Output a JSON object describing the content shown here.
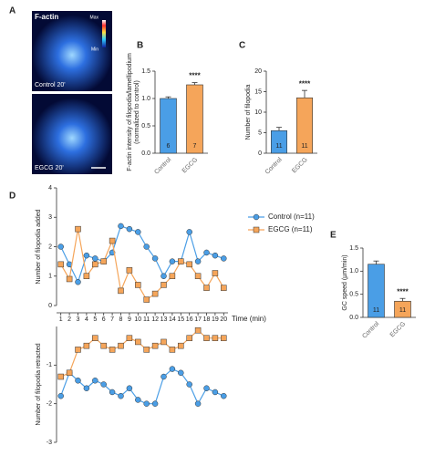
{
  "panel_a": {
    "label": "A",
    "title": "F-actin",
    "scale_max": "Max",
    "scale_min": "Min",
    "images": [
      "Control 20'",
      "EGCG 20'"
    ]
  },
  "chart_data": [
    {
      "type": "bar",
      "panel": "B",
      "ylabel": [
        "F-actin intensity of filopodia/lamellipodium",
        "(normalized to control)"
      ],
      "categories": [
        "Control",
        "EGCG"
      ],
      "values": [
        1.0,
        1.25
      ],
      "errors": [
        0.03,
        0.04
      ],
      "n_labels": [
        "6",
        "7"
      ],
      "colors": [
        "#4a9ee6",
        "#f5a55a"
      ],
      "annotations": [
        "****"
      ],
      "ylim": [
        0,
        1.5
      ],
      "yticks": [
        {
          "value": 0,
          "label": "0.0"
        },
        {
          "value": 0.5,
          "label": "0.5"
        },
        {
          "value": 1,
          "label": "1.0"
        },
        {
          "value": 1.5,
          "label": "1.5"
        }
      ]
    },
    {
      "type": "bar",
      "panel": "C",
      "ylabel": [
        "Number of filopodia"
      ],
      "categories": [
        "Control",
        "EGCG"
      ],
      "values": [
        5.5,
        13.5
      ],
      "errors": [
        0.8,
        1.8
      ],
      "n_labels": [
        "11",
        "11"
      ],
      "colors": [
        "#4a9ee6",
        "#f5a55a"
      ],
      "annotations": [
        "****"
      ],
      "ylim": [
        0,
        20
      ],
      "yticks": [
        0,
        5,
        10,
        15,
        20
      ]
    },
    {
      "type": "line",
      "panel": "D",
      "ylabel": [
        "Number of filopodia added"
      ],
      "xlabel": "Time (min)",
      "x": [
        1,
        2,
        3,
        4,
        5,
        6,
        7,
        8,
        9,
        10,
        11,
        12,
        13,
        14,
        15,
        16,
        17,
        18,
        19,
        20
      ],
      "xlim": [
        0.5,
        20.5
      ],
      "series": [
        {
          "name": "Control (n=11)",
          "color": "#4a9ee6",
          "marker": "circle",
          "values": [
            2.0,
            1.4,
            0.8,
            1.7,
            1.6,
            1.5,
            1.8,
            2.7,
            2.6,
            2.5,
            2.0,
            1.6,
            1.0,
            1.5,
            1.5,
            2.5,
            1.5,
            1.8,
            1.7,
            1.6
          ]
        },
        {
          "name": "EGCG (n=11)",
          "color": "#f5a55a",
          "marker": "square",
          "values": [
            1.4,
            0.9,
            2.6,
            1.0,
            1.4,
            1.5,
            2.2,
            0.5,
            1.2,
            0.7,
            0.2,
            0.4,
            0.7,
            1.0,
            1.5,
            1.4,
            1.0,
            0.6,
            1.1,
            0.6
          ]
        }
      ],
      "ylim": [
        0,
        4
      ],
      "yticks": [
        0,
        1,
        2,
        3,
        4
      ]
    },
    {
      "type": "line",
      "ylabel": [
        "Number of filopodia retracted"
      ],
      "x": [
        1,
        2,
        3,
        4,
        5,
        6,
        7,
        8,
        9,
        10,
        11,
        12,
        13,
        14,
        15,
        16,
        17,
        18,
        19,
        20
      ],
      "xlim": [
        0.5,
        20.5
      ],
      "series": [
        {
          "color": "#4a9ee6",
          "marker": "circle",
          "values": [
            -1.8,
            -1.2,
            -1.4,
            -1.6,
            -1.4,
            -1.5,
            -1.7,
            -1.8,
            -1.6,
            -1.9,
            -2.0,
            -2.0,
            -1.3,
            -1.1,
            -1.2,
            -1.5,
            -2.0,
            -1.6,
            -1.7,
            -1.8
          ]
        },
        {
          "color": "#f5a55a",
          "marker": "square",
          "values": [
            -1.3,
            -1.2,
            -0.6,
            -0.5,
            -0.3,
            -0.5,
            -0.6,
            -0.5,
            -0.3,
            -0.4,
            -0.6,
            -0.5,
            -0.4,
            -0.6,
            -0.5,
            -0.3,
            -0.1,
            -0.3,
            -0.3,
            -0.3
          ]
        }
      ],
      "ylim": [
        -3,
        0
      ],
      "yticks": [
        -3,
        -2,
        -1
      ]
    },
    {
      "type": "bar",
      "panel": "E",
      "ylabel": [
        "GC speed (µm/min)"
      ],
      "categories": [
        "Control",
        "EGCG"
      ],
      "values": [
        1.15,
        0.35
      ],
      "errors": [
        0.07,
        0.06
      ],
      "n_labels": [
        "11",
        "11"
      ],
      "colors": [
        "#4a9ee6",
        "#f5a55a"
      ],
      "annotations": [
        "****"
      ],
      "ylim": [
        0,
        1.5
      ],
      "yticks": [
        {
          "value": 0,
          "label": "0.0"
        },
        {
          "value": 0.5,
          "label": "0.5"
        },
        {
          "value": 1,
          "label": "1.0"
        },
        {
          "value": 1.5,
          "label": "1.5"
        }
      ]
    }
  ]
}
